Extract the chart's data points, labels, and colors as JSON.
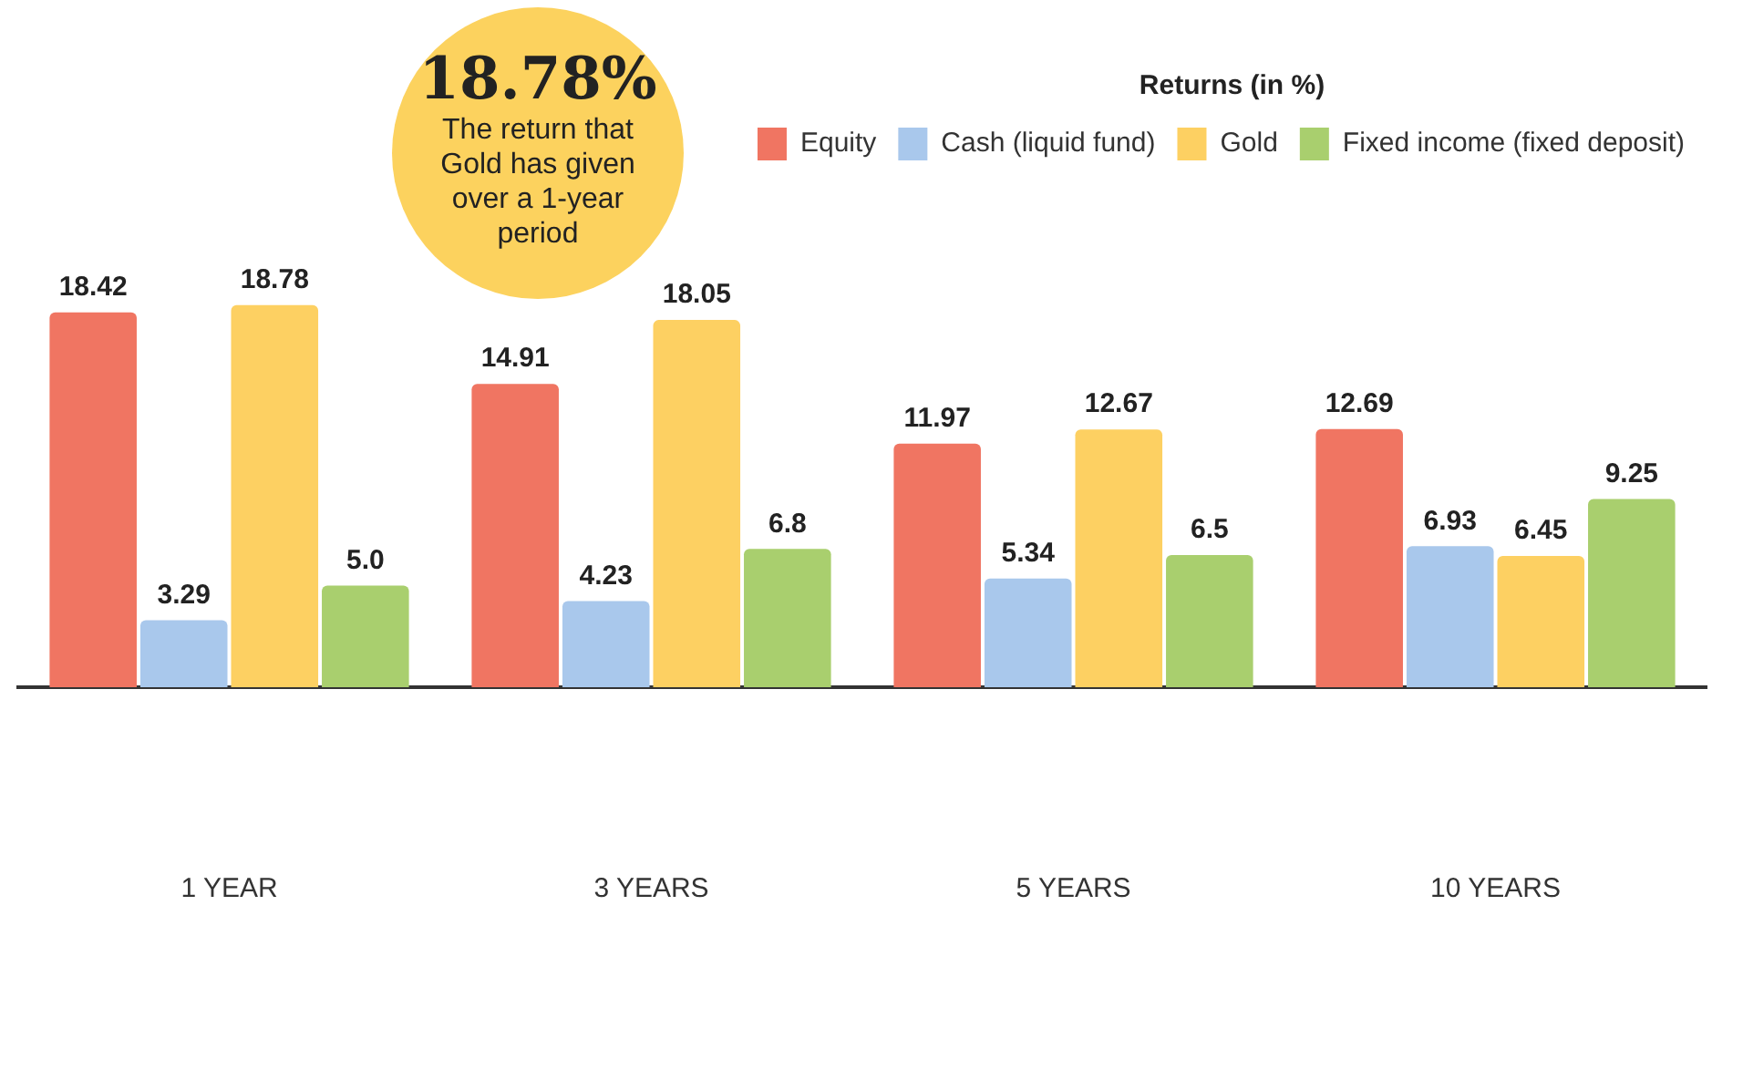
{
  "chart_data": {
    "type": "bar",
    "categories": [
      "1 YEAR",
      "3 YEARS",
      "5 YEARS",
      "10 YEARS"
    ],
    "legend_title": "Returns (in %)",
    "legend": "top right",
    "grid": false,
    "tick_labels": "x",
    "series": [
      {
        "name": "Equity",
        "color": "#f07562",
        "values": [
          18.42,
          14.91,
          11.97,
          12.69
        ],
        "value_labels": [
          "18.42",
          "14.91",
          "11.97",
          "12.69"
        ]
      },
      {
        "name": "Cash (liquid fund)",
        "color": "#a9c8ec",
        "values": [
          3.29,
          4.23,
          5.34,
          6.93
        ],
        "value_labels": [
          "3.29",
          "4.23",
          "5.34",
          "6.93"
        ]
      },
      {
        "name": "Gold",
        "color": "#fdd062",
        "values": [
          18.78,
          18.05,
          12.67,
          6.45
        ],
        "value_labels": [
          "18.78",
          "18.05",
          "12.67",
          "6.45"
        ]
      },
      {
        "name": "Fixed income (fixed deposit)",
        "color": "#a9cf6e",
        "values": [
          5.0,
          6.8,
          6.5,
          9.25
        ],
        "value_labels": [
          "5.0",
          "6.8",
          "6.5",
          "9.25"
        ]
      }
    ],
    "annotations": [
      "18.78% The return that Gold has given over a 1-year period"
    ]
  }
}
